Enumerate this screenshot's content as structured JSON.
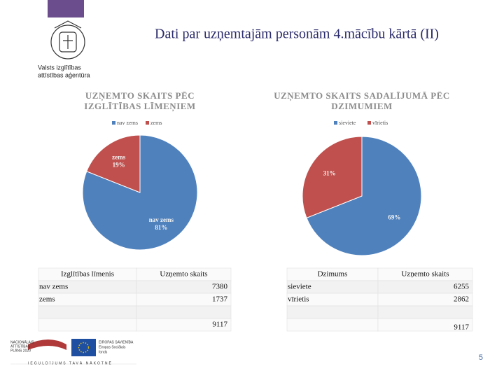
{
  "header": {
    "title": "Dati par uzņemtajām personām 4.mācību kārtā (II)",
    "logo_text": [
      "Valsts izglītības",
      "attīstības aģentūra"
    ],
    "page_number": "5"
  },
  "chart_data": [
    {
      "type": "pie",
      "title": [
        "UZŅEMTO SKAITS PĒC",
        "IZGLĪTĪBAS LĪMEŅIEM"
      ],
      "categories": [
        "nav zems",
        "zems"
      ],
      "values": [
        81,
        19
      ],
      "value_labels": [
        "81%",
        "19%"
      ],
      "colors": [
        "#4f81bd",
        "#c0504d"
      ],
      "legend": "top",
      "category_in_label": true
    },
    {
      "type": "pie",
      "title": [
        "UZŅEMTO SKAITS SADALĪJUMĀ PĒC",
        "DZIMUMIEM"
      ],
      "categories": [
        "sieviete",
        "vīrietis"
      ],
      "values": [
        69,
        31
      ],
      "value_labels": [
        "69%",
        "31%"
      ],
      "colors": [
        "#4f81bd",
        "#c0504d"
      ],
      "legend": "top",
      "category_in_label": false
    }
  ],
  "tables": [
    {
      "header": [
        "Izglītības līmenis",
        "Uzņemto skaits"
      ],
      "rows": [
        {
          "label": "nav zems",
          "value": 7380
        },
        {
          "label": "zems",
          "value": 1737
        }
      ],
      "total": 9117
    },
    {
      "header": [
        "Dzimums",
        "Uzņemto skaits"
      ],
      "rows": [
        {
          "label": "sieviete",
          "value": 6255
        },
        {
          "label": "vīrietis",
          "value": 2862
        }
      ],
      "total": 9117
    }
  ],
  "footer": {
    "plan": [
      "NACIONĀLAIS",
      "ATTĪSTĪBAS",
      "PLĀNS 2020"
    ],
    "eu": [
      "EIROPAS SAVIENĪBA",
      "Eiropas Sociālais",
      "fonds"
    ],
    "slogan": "IEGULDĪJUMS TAVĀ NĀKOTNĒ"
  }
}
